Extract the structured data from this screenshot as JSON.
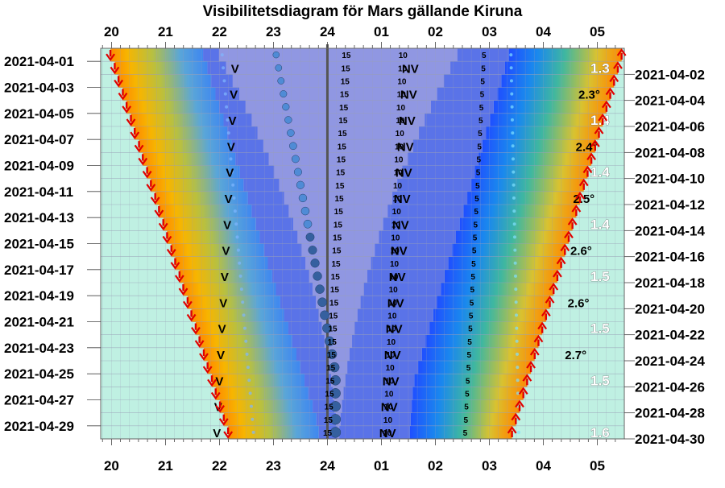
{
  "chart_data": {
    "type": "visibility-diagram",
    "title": "Visibilitetsdiagram för Mars gällande Kiruna",
    "hour_ticks": [
      "20",
      "21",
      "22",
      "23",
      "24",
      "01",
      "02",
      "03",
      "04",
      "05"
    ],
    "hour_range": [
      19.8,
      29.5
    ],
    "dates_left": [
      "2021-04-01",
      "2021-04-03",
      "2021-04-05",
      "2021-04-07",
      "2021-04-09",
      "2021-04-11",
      "2021-04-13",
      "2021-04-15",
      "2021-04-17",
      "2021-04-19",
      "2021-04-21",
      "2021-04-23",
      "2021-04-25",
      "2021-04-27",
      "2021-04-29"
    ],
    "dates_right": [
      "2021-04-02",
      "2021-04-04",
      "2021-04-06",
      "2021-04-08",
      "2021-04-10",
      "2021-04-12",
      "2021-04-14",
      "2021-04-16",
      "2021-04-18",
      "2021-04-20",
      "2021-04-22",
      "2021-04-24",
      "2021-04-26",
      "2021-04-28",
      "2021-04-30"
    ],
    "day_count": 30,
    "sunset_hours": [
      19.98,
      20.06,
      20.13,
      20.21,
      20.28,
      20.36,
      20.43,
      20.51,
      20.58,
      20.66,
      20.73,
      20.81,
      20.88,
      20.96,
      21.03,
      21.11,
      21.18,
      21.26,
      21.33,
      21.41,
      21.48,
      21.56,
      21.63,
      21.71,
      21.78,
      21.86,
      21.93,
      22.01,
      22.08,
      22.16
    ],
    "sunrise_hours": [
      29.45,
      29.38,
      29.31,
      29.24,
      29.17,
      29.1,
      29.03,
      28.96,
      28.89,
      28.82,
      28.75,
      28.68,
      28.61,
      28.54,
      28.47,
      28.4,
      28.33,
      28.26,
      28.19,
      28.12,
      28.05,
      27.98,
      27.91,
      27.84,
      27.77,
      27.7,
      27.63,
      27.56,
      27.49,
      27.42
    ],
    "mars_altitude_labels": [
      "15",
      "10",
      "5"
    ],
    "direction_labels": [
      "V",
      "NV"
    ],
    "elongation_labels": [
      "2.3°",
      "2.4°",
      "2.5°",
      "2.6°",
      "2.6°",
      "2.7°"
    ],
    "magnitude_labels": [
      "1.3",
      "1.4",
      "1.4",
      "1.4",
      "1.5",
      "1.5",
      "1.5",
      "1.6"
    ],
    "grid": true
  }
}
